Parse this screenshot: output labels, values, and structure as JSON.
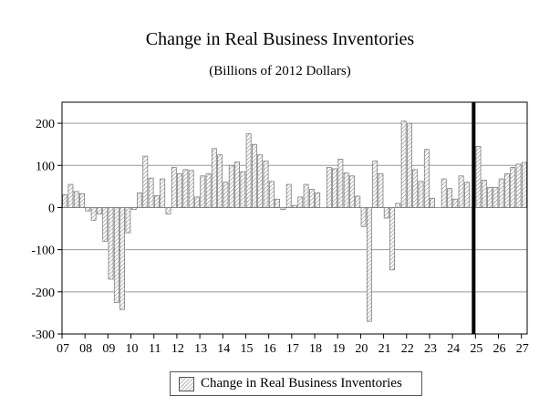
{
  "chart_data": {
    "type": "bar",
    "title": "Change in Real Business Inventories",
    "subtitle": "(Billions of 2012 Dollars)",
    "xlabel": "",
    "ylabel": "",
    "ylim": [
      -300,
      250
    ],
    "yticks": [
      200,
      100,
      0,
      -100,
      -200,
      -300
    ],
    "xticks": [
      "07",
      "08",
      "09",
      "10",
      "11",
      "12",
      "13",
      "14",
      "15",
      "16",
      "17",
      "18",
      "19",
      "20",
      "21",
      "22",
      "23",
      "24",
      "25",
      "26",
      "27"
    ],
    "x_start_year": 2007,
    "grid": true,
    "legend_position": "bottom",
    "forecast_marker_at": "25",
    "series": [
      {
        "name": "Change in Real Business Inventories",
        "values": [
          30,
          55,
          38,
          33,
          -8,
          -30,
          -15,
          -80,
          -170,
          -225,
          -242,
          -60,
          -5,
          35,
          122,
          70,
          28,
          68,
          -15,
          95,
          80,
          90,
          88,
          25,
          75,
          80,
          140,
          125,
          60,
          100,
          108,
          85,
          175,
          150,
          125,
          110,
          62,
          20,
          -5,
          55,
          5,
          25,
          55,
          43,
          35,
          0,
          95,
          92,
          115,
          82,
          75,
          27,
          -45,
          -270,
          110,
          80,
          -25,
          -148,
          10,
          205,
          200,
          90,
          62,
          138,
          22,
          0,
          68,
          45,
          20,
          75,
          60,
          0,
          145,
          65,
          48,
          48,
          68,
          80,
          95,
          103,
          107
        ]
      }
    ]
  }
}
